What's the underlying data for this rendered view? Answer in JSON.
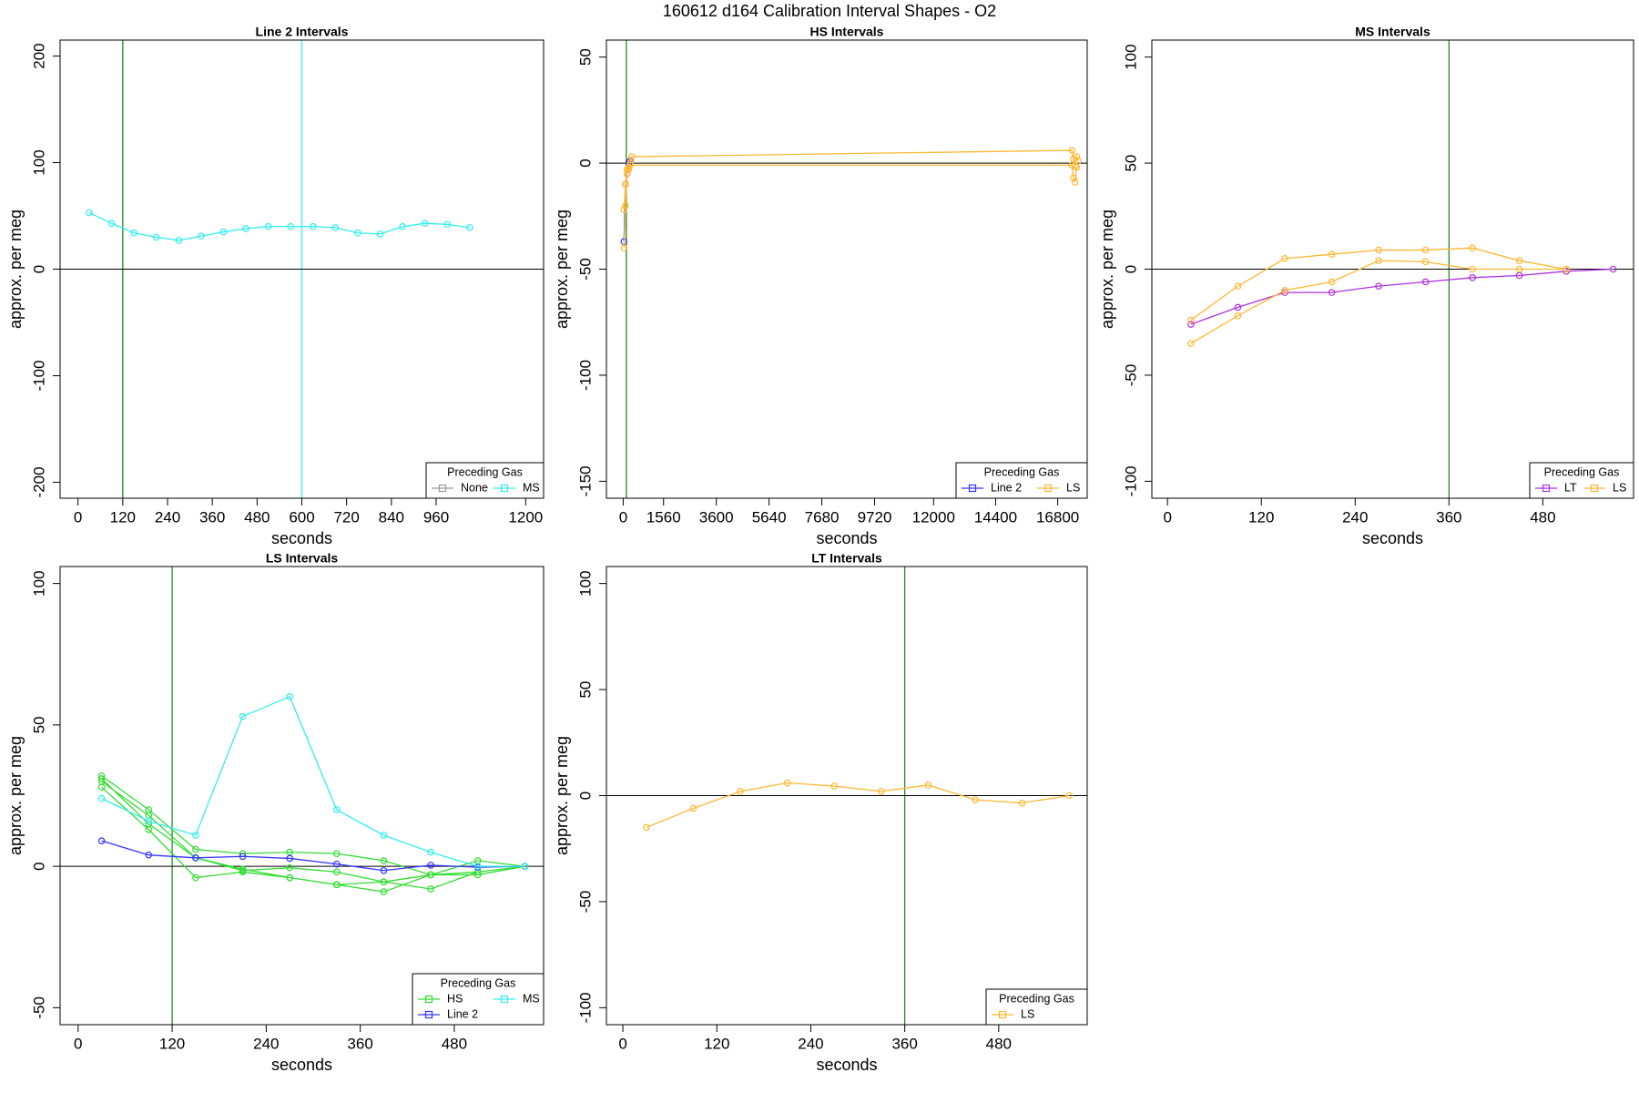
{
  "title": "160612   d164   Calibration Interval Shapes - O2",
  "chart_data": [
    {
      "type": "line",
      "title": "Line 2 Intervals",
      "xlabel": "seconds",
      "ylabel": "approx. per meg",
      "xlim": [
        -48,
        1248
      ],
      "ylim": [
        -215,
        215
      ],
      "xticks": [
        0,
        120,
        240,
        360,
        480,
        600,
        720,
        840,
        960,
        1200
      ],
      "yticks": [
        -200,
        -100,
        0,
        100,
        200
      ],
      "hline": {
        "value": 0,
        "color": "#000000"
      },
      "vlines": [
        {
          "value": 120,
          "color": "#228b22"
        },
        {
          "value": 600,
          "color": "#33eeee"
        }
      ],
      "legend": "bottomright",
      "legend_title": "Preceding Gas",
      "legend_ncol": 2,
      "series": [
        {
          "name": "None",
          "color": "#999999",
          "x": [],
          "values": []
        },
        {
          "name": "MS",
          "color": "#33eeee",
          "x": [
            30,
            90,
            150,
            210,
            270,
            330,
            390,
            450,
            510,
            570,
            630,
            690,
            750,
            810,
            870,
            930,
            990,
            1050
          ],
          "values": [
            53,
            43,
            34,
            30,
            27,
            31,
            35,
            38,
            40,
            40,
            40,
            39,
            34,
            33,
            40,
            43,
            42,
            39
          ]
        }
      ]
    },
    {
      "type": "line",
      "title": "HS Intervals",
      "xlabel": "seconds",
      "ylabel": "approx. per meg",
      "xlim": [
        -649,
        17940
      ],
      "ylim": [
        -158,
        58
      ],
      "xticks": [
        0,
        1560,
        3600,
        5640,
        7680,
        9720,
        12000,
        14400,
        16800
      ],
      "yticks": [
        -150,
        -100,
        -50,
        0,
        50
      ],
      "hline": {
        "value": 0,
        "color": "#000000"
      },
      "vlines": [
        {
          "value": 120,
          "color": "#228b22"
        }
      ],
      "legend": "bottomright",
      "legend_title": "Preceding Gas",
      "legend_ncol": 2,
      "series": [
        {
          "name": "Line 2",
          "color": "#3333ff",
          "x": [
            30,
            90,
            150,
            210,
            270
          ],
          "values": [
            -37,
            -10,
            -5,
            0,
            1
          ]
        },
        {
          "name": "LS",
          "color": "#ffb733",
          "x": [
            30,
            90,
            150,
            210,
            270,
            330,
            17350,
            17410,
            17470,
            17530,
            17590,
            null,
            30,
            90,
            150,
            210,
            270,
            17350,
            17410,
            17470,
            17530
          ],
          "values": [
            -40,
            -20,
            -5,
            -3,
            0,
            3,
            6,
            2,
            -1,
            3,
            1,
            null,
            -22,
            -10,
            -3,
            -2,
            -1,
            -1,
            -7,
            -9,
            -2
          ]
        }
      ]
    },
    {
      "type": "line",
      "title": "MS Intervals",
      "xlabel": "seconds",
      "ylabel": "approx. per meg",
      "xlim": [
        -20,
        596
      ],
      "ylim": [
        -108,
        108
      ],
      "xticks": [
        0,
        120,
        240,
        360,
        480
      ],
      "yticks": [
        -100,
        -50,
        0,
        50,
        100
      ],
      "hline": {
        "value": 0,
        "color": "#000000"
      },
      "vlines": [
        {
          "value": 360,
          "color": "#228b22"
        }
      ],
      "legend": "bottomright",
      "legend_title": "Preceding Gas",
      "legend_ncol": 2,
      "series": [
        {
          "name": "LT",
          "color": "#b030e0",
          "x": [
            30,
            90,
            150,
            210,
            270,
            330,
            390,
            450,
            510,
            570
          ],
          "values": [
            -26,
            -18,
            -11,
            -11,
            -8,
            -6,
            -4,
            -3,
            -1,
            0
          ]
        },
        {
          "name": "LS",
          "color": "#ffb733",
          "x": [
            30,
            90,
            150,
            210,
            270,
            330,
            390,
            450,
            510,
            null,
            30,
            90,
            150,
            210,
            270,
            330,
            390,
            450,
            510
          ],
          "values": [
            -24,
            -8,
            5,
            7,
            9,
            9,
            10,
            4,
            0,
            null,
            -35,
            -22,
            -10,
            -6,
            4,
            3.5,
            0,
            0,
            0
          ]
        }
      ]
    },
    {
      "type": "line",
      "title": "LS Intervals",
      "xlabel": "seconds",
      "ylabel": "approx. per meg",
      "xlim": [
        -23,
        594
      ],
      "ylim": [
        -56,
        106
      ],
      "xticks": [
        0,
        120,
        240,
        360,
        480
      ],
      "yticks": [
        -50,
        0,
        50,
        100
      ],
      "hline": {
        "value": 0,
        "color": "#000000"
      },
      "vlines": [
        {
          "value": 120,
          "color": "#228b22"
        }
      ],
      "legend": "bottomright",
      "legend_title": "Preceding Gas",
      "legend_ncol": 2,
      "series": [
        {
          "name": "HS",
          "color": "#33dd33",
          "x": [
            30,
            90,
            150,
            210,
            270,
            330,
            390,
            450,
            510,
            570,
            null,
            30,
            90,
            150,
            210,
            270,
            330,
            390,
            450,
            510,
            570,
            null,
            30,
            90,
            150,
            210,
            270,
            330,
            390,
            450,
            510,
            570,
            null,
            30,
            90,
            150,
            210,
            270,
            330,
            390,
            450,
            510,
            570
          ],
          "values": [
            32,
            20,
            6,
            4.5,
            5,
            4.5,
            2,
            -3,
            2,
            0,
            null,
            30,
            18,
            3,
            -1.5,
            -0.5,
            -2,
            -5.5,
            -3,
            -2,
            0,
            null,
            28,
            13,
            -4,
            -2,
            -4,
            -6.5,
            -9,
            -3,
            -3,
            0,
            null,
            31,
            15,
            3,
            -1,
            -4,
            -6.5,
            -5.5,
            -8,
            -2,
            0
          ]
        },
        {
          "name": "Line 2",
          "color": "#3333ff",
          "x": [
            30,
            90,
            150,
            210,
            270,
            330,
            390,
            450,
            510,
            570
          ],
          "values": [
            9,
            4,
            3,
            3.5,
            2.8,
            0.8,
            -1.5,
            0.4,
            -0.3,
            0
          ]
        },
        {
          "name": "MS",
          "color": "#33eeee",
          "x": [
            30,
            90,
            150,
            210,
            270,
            330,
            390,
            450,
            510,
            570
          ],
          "values": [
            24,
            16,
            11,
            53,
            60,
            20,
            11,
            5,
            0,
            0
          ]
        }
      ]
    },
    {
      "type": "line",
      "title": "LT Intervals",
      "xlabel": "seconds",
      "ylabel": "approx. per meg",
      "xlim": [
        -21,
        593
      ],
      "ylim": [
        -108,
        108
      ],
      "xticks": [
        0,
        120,
        240,
        360,
        480
      ],
      "yticks": [
        -100,
        -50,
        0,
        50,
        100
      ],
      "hline": {
        "value": 0,
        "color": "#000000"
      },
      "vlines": [
        {
          "value": 360,
          "color": "#228b22"
        }
      ],
      "legend": "bottomright",
      "legend_title": "Preceding Gas",
      "legend_ncol": 1,
      "series": [
        {
          "name": "LS",
          "color": "#ffb733",
          "x": [
            30,
            90,
            150,
            210,
            270,
            330,
            390,
            450,
            510,
            570
          ],
          "values": [
            -15,
            -6,
            2,
            6,
            4.5,
            2,
            5,
            -2,
            -3.5,
            0
          ]
        }
      ]
    }
  ]
}
